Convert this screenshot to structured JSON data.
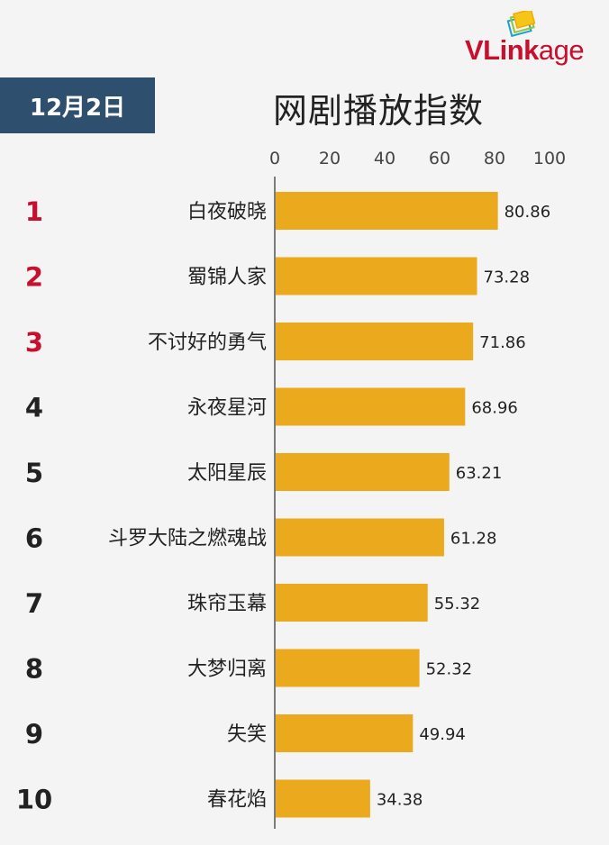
{
  "header": {
    "date": "12月2日",
    "title": "网剧播放指数",
    "logo_text": "VLinkage",
    "logo_text_parts": [
      "VLink",
      "age"
    ]
  },
  "colors": {
    "bar": "#eba91e",
    "badge": "#2f4f6f",
    "rank_top": "#c8102e",
    "rank_other": "#222222",
    "axis": "#555555"
  },
  "chart_data": {
    "type": "bar",
    "orientation": "horizontal",
    "title": "网剧播放指数",
    "xlim": [
      0,
      100
    ],
    "x_ticks": [
      "0",
      "20",
      "40",
      "60",
      "80",
      "100"
    ],
    "ranks": [
      "1",
      "2",
      "3",
      "4",
      "5",
      "6",
      "7",
      "8",
      "9",
      "10"
    ],
    "categories": [
      "白夜破晓",
      "蜀锦人家",
      "不讨好的勇气",
      "永夜星河",
      "太阳星辰",
      "斗罗大陆之燃魂战",
      "珠帘玉幕",
      "大梦归离",
      "失笑",
      "春花焰"
    ],
    "values": [
      80.86,
      73.28,
      71.86,
      68.96,
      63.21,
      61.28,
      55.32,
      52.32,
      49.94,
      34.38
    ],
    "value_labels": [
      "80.86",
      "73.28",
      "71.86",
      "68.96",
      "63.21",
      "61.28",
      "55.32",
      "52.32",
      "49.94",
      "34.38"
    ],
    "highlight_top": 3,
    "grid": false,
    "legend": "none"
  }
}
